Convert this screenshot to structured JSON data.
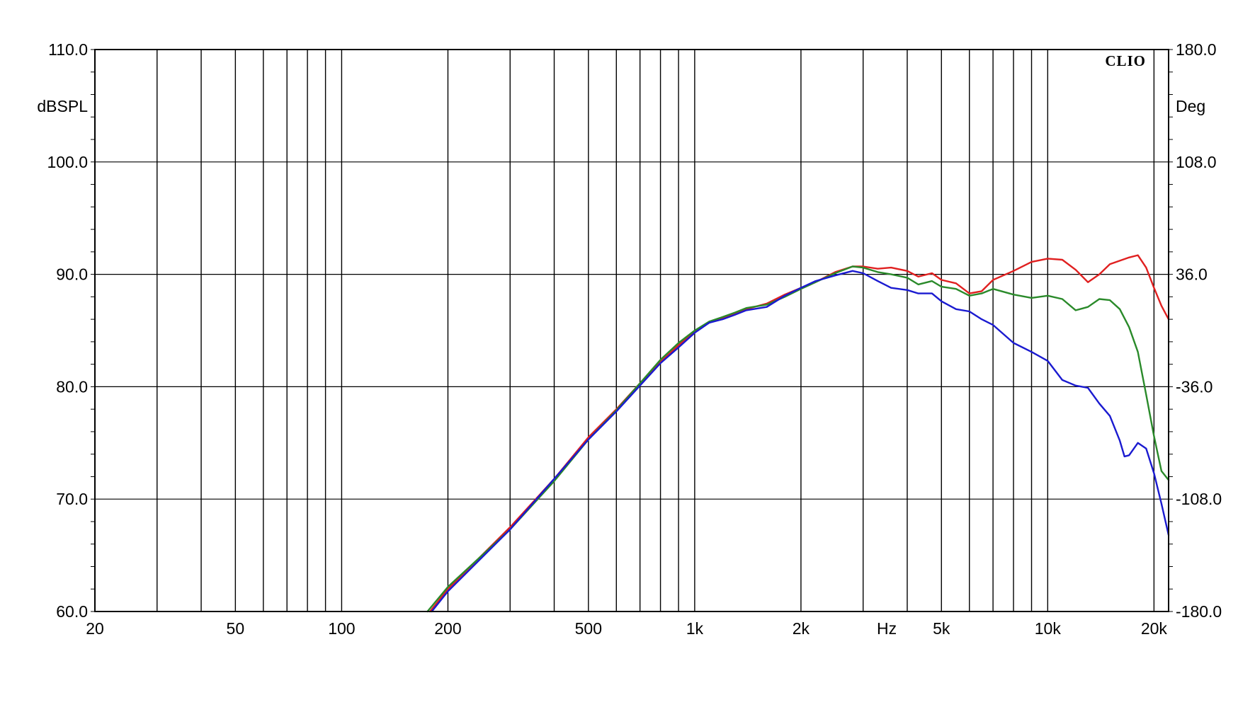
{
  "chart_data": {
    "type": "line",
    "brand": "CLIO",
    "x_axis": {
      "scale": "log",
      "range": [
        20,
        22000
      ],
      "unit_label": "Hz",
      "ticks": [
        {
          "value": 20,
          "label": "20"
        },
        {
          "value": 50,
          "label": "50"
        },
        {
          "value": 100,
          "label": "100"
        },
        {
          "value": 200,
          "label": "200"
        },
        {
          "value": 500,
          "label": "500"
        },
        {
          "value": 1000,
          "label": "1k"
        },
        {
          "value": 2000,
          "label": "2k"
        },
        {
          "value": 5000,
          "label": "5k"
        },
        {
          "value": 10000,
          "label": "10k"
        },
        {
          "value": 20000,
          "label": "20k"
        }
      ],
      "gridlines": [
        20,
        30,
        40,
        50,
        60,
        70,
        80,
        90,
        100,
        200,
        300,
        400,
        500,
        600,
        700,
        800,
        900,
        1000,
        2000,
        3000,
        4000,
        5000,
        6000,
        7000,
        8000,
        9000,
        10000,
        20000
      ]
    },
    "y_axis_left": {
      "unit_label": "dBSPL",
      "range": [
        60,
        110
      ],
      "ticks": [
        {
          "value": 110,
          "label": "110.0"
        },
        {
          "value": 100,
          "label": "100.0"
        },
        {
          "value": 90,
          "label": "90.0"
        },
        {
          "value": 80,
          "label": "80.0"
        },
        {
          "value": 70,
          "label": "70.0"
        },
        {
          "value": 60,
          "label": "60.0"
        }
      ]
    },
    "y_axis_right": {
      "unit_label": "Deg",
      "range": [
        -180,
        180
      ],
      "ticks": [
        {
          "value": 180,
          "label": "180.0"
        },
        {
          "value": 108,
          "label": "108.0"
        },
        {
          "value": 36,
          "label": "36.0"
        },
        {
          "value": -36,
          "label": "-36.0"
        },
        {
          "value": -108,
          "label": "-108.0"
        },
        {
          "value": -180,
          "label": "-180.0"
        }
      ]
    },
    "grid": true,
    "series": [
      {
        "color": "#e02020",
        "points": [
          [
            178,
            60
          ],
          [
            200,
            62
          ],
          [
            300,
            67.5
          ],
          [
            400,
            71.8
          ],
          [
            500,
            75.5
          ],
          [
            600,
            78
          ],
          [
            700,
            80.3
          ],
          [
            800,
            82.2
          ],
          [
            900,
            83.7
          ],
          [
            1000,
            84.9
          ],
          [
            1100,
            85.7
          ],
          [
            1200,
            86.1
          ],
          [
            1300,
            86.5
          ],
          [
            1400,
            86.9
          ],
          [
            1600,
            87.4
          ],
          [
            1800,
            88.2
          ],
          [
            2000,
            88.8
          ],
          [
            2200,
            89.3
          ],
          [
            2500,
            90.2
          ],
          [
            2800,
            90.7
          ],
          [
            3000,
            90.7
          ],
          [
            3300,
            90.5
          ],
          [
            3600,
            90.6
          ],
          [
            4000,
            90.3
          ],
          [
            4300,
            89.8
          ],
          [
            4700,
            90.1
          ],
          [
            5000,
            89.5
          ],
          [
            5500,
            89.2
          ],
          [
            6000,
            88.3
          ],
          [
            6500,
            88.5
          ],
          [
            7000,
            89.5
          ],
          [
            8000,
            90.3
          ],
          [
            9000,
            91.1
          ],
          [
            10000,
            91.4
          ],
          [
            11000,
            91.3
          ],
          [
            12000,
            90.4
          ],
          [
            13000,
            89.3
          ],
          [
            14000,
            90
          ],
          [
            15000,
            90.9
          ],
          [
            17000,
            91.5
          ],
          [
            18000,
            91.7
          ],
          [
            19000,
            90.6
          ],
          [
            20000,
            88.8
          ],
          [
            21000,
            87.2
          ],
          [
            22000,
            86
          ]
        ]
      },
      {
        "color": "#2a8a2a",
        "points": [
          [
            175,
            60
          ],
          [
            200,
            62.2
          ],
          [
            300,
            67.3
          ],
          [
            400,
            71.6
          ],
          [
            500,
            75.3
          ],
          [
            600,
            77.9
          ],
          [
            700,
            80.3
          ],
          [
            800,
            82.4
          ],
          [
            900,
            83.9
          ],
          [
            1000,
            85.0
          ],
          [
            1100,
            85.8
          ],
          [
            1200,
            86.2
          ],
          [
            1300,
            86.6
          ],
          [
            1400,
            87.0
          ],
          [
            1600,
            87.3
          ],
          [
            1800,
            88
          ],
          [
            2000,
            88.7
          ],
          [
            2200,
            89.3
          ],
          [
            2500,
            90.1
          ],
          [
            2800,
            90.7
          ],
          [
            3000,
            90.6
          ],
          [
            3300,
            90.2
          ],
          [
            3600,
            90
          ],
          [
            4000,
            89.7
          ],
          [
            4300,
            89.1
          ],
          [
            4700,
            89.4
          ],
          [
            5000,
            88.9
          ],
          [
            5500,
            88.7
          ],
          [
            6000,
            88.1
          ],
          [
            6500,
            88.3
          ],
          [
            7000,
            88.7
          ],
          [
            8000,
            88.2
          ],
          [
            9000,
            87.9
          ],
          [
            10000,
            88.1
          ],
          [
            11000,
            87.8
          ],
          [
            12000,
            86.8
          ],
          [
            13000,
            87.1
          ],
          [
            14000,
            87.8
          ],
          [
            15000,
            87.7
          ],
          [
            16000,
            86.9
          ],
          [
            17000,
            85.3
          ],
          [
            18000,
            83.1
          ],
          [
            19000,
            79.3
          ],
          [
            20000,
            75.6
          ],
          [
            21000,
            72.5
          ],
          [
            22000,
            71.7
          ]
        ]
      },
      {
        "color": "#1a1ad0",
        "points": [
          [
            180,
            60
          ],
          [
            200,
            61.8
          ],
          [
            300,
            67.3
          ],
          [
            400,
            71.8
          ],
          [
            500,
            75.3
          ],
          [
            600,
            77.8
          ],
          [
            700,
            80.1
          ],
          [
            800,
            82.1
          ],
          [
            900,
            83.5
          ],
          [
            1000,
            84.8
          ],
          [
            1100,
            85.7
          ],
          [
            1200,
            86.0
          ],
          [
            1300,
            86.4
          ],
          [
            1400,
            86.8
          ],
          [
            1600,
            87.1
          ],
          [
            1800,
            88.1
          ],
          [
            2000,
            88.8
          ],
          [
            2200,
            89.4
          ],
          [
            2500,
            89.9
          ],
          [
            2800,
            90.3
          ],
          [
            3000,
            90.1
          ],
          [
            3300,
            89.4
          ],
          [
            3600,
            88.8
          ],
          [
            4000,
            88.6
          ],
          [
            4300,
            88.3
          ],
          [
            4700,
            88.3
          ],
          [
            5000,
            87.6
          ],
          [
            5500,
            86.9
          ],
          [
            6000,
            86.7
          ],
          [
            6500,
            86.0
          ],
          [
            7000,
            85.5
          ],
          [
            8000,
            83.9
          ],
          [
            9000,
            83.1
          ],
          [
            10000,
            82.3
          ],
          [
            11000,
            80.6
          ],
          [
            12000,
            80.1
          ],
          [
            13000,
            79.9
          ],
          [
            14000,
            78.5
          ],
          [
            15000,
            77.4
          ],
          [
            16000,
            75.2
          ],
          [
            16500,
            73.8
          ],
          [
            17000,
            73.9
          ],
          [
            18000,
            75.0
          ],
          [
            19000,
            74.5
          ],
          [
            20000,
            72.3
          ],
          [
            21000,
            69.6
          ],
          [
            22000,
            66.8
          ]
        ]
      }
    ]
  }
}
